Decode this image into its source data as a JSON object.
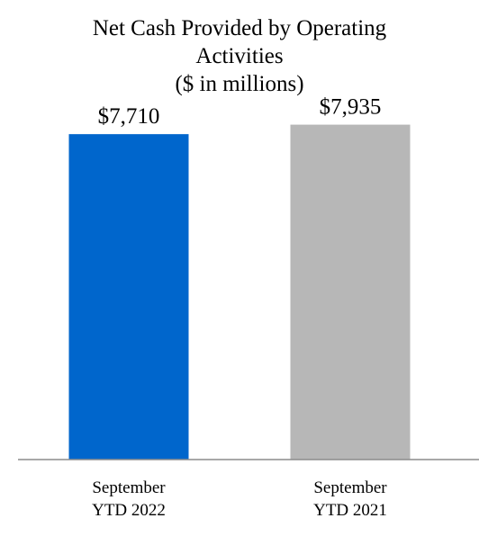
{
  "chart_data": {
    "type": "bar",
    "title_lines": [
      "Net Cash Provided by Operating",
      "Activities",
      "($ in millions)"
    ],
    "categories": [
      [
        "September",
        "YTD 2022"
      ],
      [
        "September",
        "YTD 2021"
      ]
    ],
    "values": [
      7710,
      7935
    ],
    "data_labels": [
      "$7,710",
      "$7,935"
    ],
    "colors": [
      "#0066CC",
      "#B7B7B7"
    ],
    "axis_color": "#8C8C8C",
    "xlabel": "",
    "ylabel": "",
    "ylim": [
      0,
      8800
    ],
    "grid": false,
    "legend": "none"
  }
}
